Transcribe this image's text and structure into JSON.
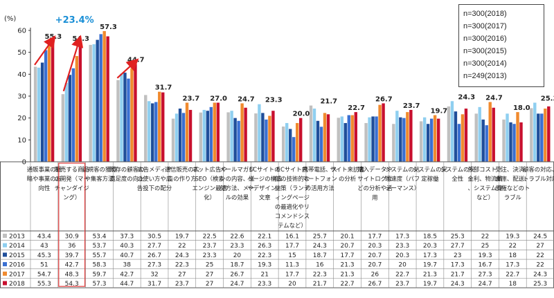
{
  "chart_data": {
    "type": "bar",
    "y_unit_label": "(%)",
    "ylim": [
      0,
      60
    ],
    "yticks": [
      0,
      10,
      20,
      30,
      40,
      50,
      60
    ],
    "grid": false,
    "legend_position": "top-right",
    "highlight_annotation": "+23.4%",
    "sample_sizes": [
      "n=300(2018)",
      "n=300(2017)",
      "n=300(2016)",
      "n=300(2015)",
      "n=300(2014)",
      "n=249(2013)"
    ],
    "categories": [
      "通販事業の戦略や事業の方向性",
      "販売する商品の開発（マーチャンダイジング）",
      "新規客の獲得や集客方法",
      "既存の顧客の満足度の向上",
      "広告メディアの使い方や広告投下の配分",
      "通信販売の広告の作り方",
      "ネット広告やSEO（検索エンジン最適化）",
      "メールマガジンの内容、送付方法、メールの効果",
      "ECサイトのページの構造やデザイン、文章",
      "ECサイト内部の技術的な施策（ランディングページの最適化やリコメンドシステムなど）",
      "携帯電話、スマートフォンの活用方法",
      "サイト来訪者の分析",
      "購入データやサイトログなどの分析や活用",
      "システムの処理速度（パフォーマンス）",
      "システムの安定稼働",
      "システムの安全性",
      "外部コスト（金利、物流費、システム費など）",
      "受注、決済、倉庫、配送、債権などのトラブル",
      "顧客の対応、トラブル対応"
    ],
    "series": [
      {
        "name": "2013",
        "color": "#c0c0c0",
        "values": [
          43.4,
          30.9,
          53.4,
          37.3,
          30.5,
          19.7,
          22.5,
          22.6,
          22.1,
          16.1,
          25.7,
          20.1,
          17.7,
          17.3,
          18.5,
          25.3,
          22.0,
          19.3,
          24.5
        ]
      },
      {
        "name": "2014",
        "color": "#8fcff0",
        "values": [
          43,
          36,
          53.7,
          40.3,
          27.7,
          22,
          23.7,
          23.3,
          26.3,
          17.7,
          24.3,
          20.7,
          20.3,
          23.3,
          20.3,
          27.7,
          25,
          22,
          27
        ]
      },
      {
        "name": "2015",
        "color": "#1f4e9a",
        "values": [
          45.3,
          39.7,
          55.7,
          40.7,
          26.7,
          24.3,
          23.3,
          20.0,
          22.3,
          15.0,
          18.7,
          17.7,
          20.7,
          20.3,
          17.3,
          23.0,
          19.3,
          18.0,
          22.0
        ]
      },
      {
        "name": "2016",
        "color": "#3a6fd1",
        "values": [
          51.0,
          42.7,
          58.3,
          38.0,
          27.3,
          22.3,
          25.0,
          18.7,
          19.3,
          11.3,
          16.0,
          21.3,
          20.7,
          20.0,
          19.7,
          17.3,
          16.7,
          17.3,
          22.0
        ]
      },
      {
        "name": "2017",
        "color": "#f08a2e",
        "values": [
          54.7,
          48.3,
          59.7,
          42.7,
          32.0,
          27.0,
          27.0,
          26.7,
          21.0,
          17.7,
          22.3,
          21.3,
          26.0,
          22.7,
          21.3,
          21.7,
          27.3,
          22.7,
          24.3
        ]
      },
      {
        "name": "2018",
        "color": "#c8102e",
        "values": [
          55.3,
          54.3,
          57.3,
          44.7,
          31.7,
          23.7,
          27.0,
          24.7,
          23.3,
          20.0,
          21.7,
          22.7,
          26.7,
          23.7,
          19.7,
          24.3,
          24.7,
          18.0,
          25.3
        ]
      }
    ]
  }
}
